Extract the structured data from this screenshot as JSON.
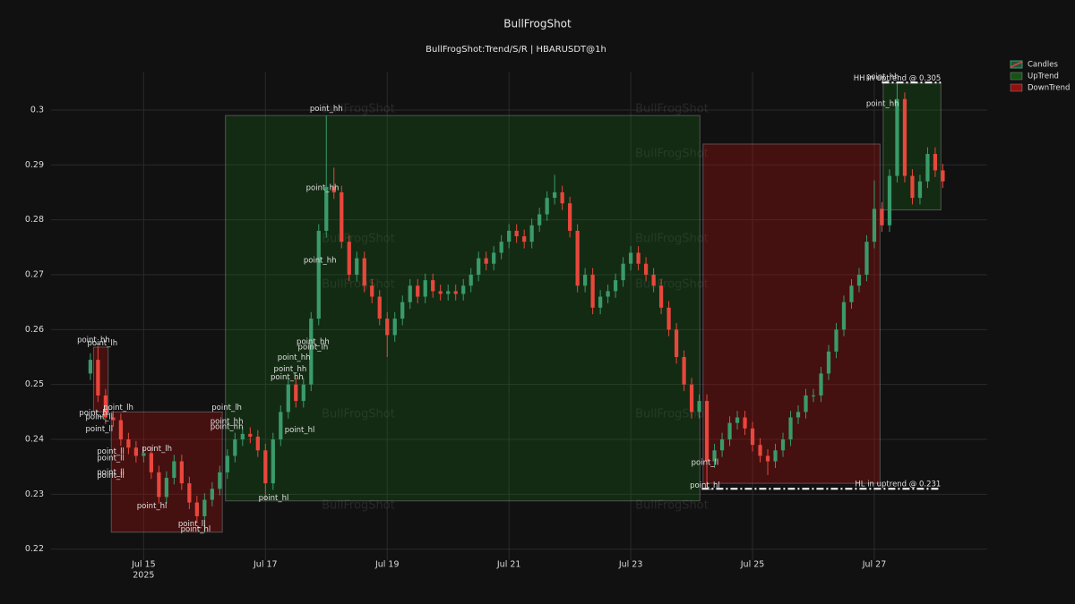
{
  "chart_data": {
    "type": "candlestick",
    "title": "BullFrogShot",
    "subtitle": "BullFrogShot:Trend/S/R | HBARUSDT@1h",
    "watermark": "BullFrogShot",
    "xlim": [
      "2025-07-13 11:30",
      "2025-07-28 20:30"
    ],
    "xticks": [
      {
        "value": "2025-07-15 00:00",
        "label": "Jul 15"
      },
      {
        "value": "2025-07-17 00:00",
        "label": "Jul 17"
      },
      {
        "value": "2025-07-19 00:00",
        "label": "Jul 19"
      },
      {
        "value": "2025-07-21 00:00",
        "label": "Jul 21"
      },
      {
        "value": "2025-07-23 00:00",
        "label": "Jul 23"
      },
      {
        "value": "2025-07-25 00:00",
        "label": "Jul 25"
      },
      {
        "value": "2025-07-27 00:00",
        "label": "Jul 27"
      }
    ],
    "x_year_label": "2025",
    "ylim": [
      0.218,
      0.307
    ],
    "yticks": [
      0.22,
      0.23,
      0.24,
      0.25,
      0.26,
      0.27,
      0.28,
      0.29,
      0.3
    ],
    "grid": true,
    "legend_position": "top-right",
    "series": [
      {
        "name": "Candles",
        "increasing_color": "#3a9a6a",
        "decreasing_color": "#e8473c"
      },
      {
        "name": "UpTrend",
        "color": "#1a8a1a",
        "opacity": 0.22
      },
      {
        "name": "DownTrend",
        "color": "#b31010",
        "opacity": 0.32
      }
    ],
    "x": [
      "2025-07-14 03:00",
      "2025-07-14 06:00",
      "2025-07-14 09:00",
      "2025-07-14 12:00",
      "2025-07-14 15:00",
      "2025-07-14 18:00",
      "2025-07-14 21:00",
      "2025-07-15 00:00",
      "2025-07-15 03:00",
      "2025-07-15 06:00",
      "2025-07-15 09:00",
      "2025-07-15 12:00",
      "2025-07-15 15:00",
      "2025-07-15 18:00",
      "2025-07-15 21:00",
      "2025-07-16 00:00",
      "2025-07-16 03:00",
      "2025-07-16 06:00",
      "2025-07-16 09:00",
      "2025-07-16 12:00",
      "2025-07-16 15:00",
      "2025-07-16 18:00",
      "2025-07-16 21:00",
      "2025-07-17 00:00",
      "2025-07-17 03:00",
      "2025-07-17 06:00",
      "2025-07-17 09:00",
      "2025-07-17 12:00",
      "2025-07-17 15:00",
      "2025-07-17 18:00",
      "2025-07-17 21:00",
      "2025-07-18 00:00",
      "2025-07-18 03:00",
      "2025-07-18 06:00",
      "2025-07-18 09:00",
      "2025-07-18 12:00",
      "2025-07-18 15:00",
      "2025-07-18 18:00",
      "2025-07-18 21:00",
      "2025-07-19 00:00",
      "2025-07-19 03:00",
      "2025-07-19 06:00",
      "2025-07-19 09:00",
      "2025-07-19 12:00",
      "2025-07-19 15:00",
      "2025-07-19 18:00",
      "2025-07-19 21:00",
      "2025-07-20 00:00",
      "2025-07-20 03:00",
      "2025-07-20 06:00",
      "2025-07-20 09:00",
      "2025-07-20 12:00",
      "2025-07-20 15:00",
      "2025-07-20 18:00",
      "2025-07-20 21:00",
      "2025-07-21 00:00",
      "2025-07-21 03:00",
      "2025-07-21 06:00",
      "2025-07-21 09:00",
      "2025-07-21 12:00",
      "2025-07-21 15:00",
      "2025-07-21 18:00",
      "2025-07-21 21:00",
      "2025-07-22 00:00",
      "2025-07-22 03:00",
      "2025-07-22 06:00",
      "2025-07-22 09:00",
      "2025-07-22 12:00",
      "2025-07-22 15:00",
      "2025-07-22 18:00",
      "2025-07-22 21:00",
      "2025-07-23 00:00",
      "2025-07-23 03:00",
      "2025-07-23 06:00",
      "2025-07-23 09:00",
      "2025-07-23 12:00",
      "2025-07-23 15:00",
      "2025-07-23 18:00",
      "2025-07-23 21:00",
      "2025-07-24 00:00",
      "2025-07-24 03:00",
      "2025-07-24 06:00",
      "2025-07-24 09:00",
      "2025-07-24 12:00",
      "2025-07-24 15:00",
      "2025-07-24 18:00",
      "2025-07-24 21:00",
      "2025-07-25 00:00",
      "2025-07-25 03:00",
      "2025-07-25 06:00",
      "2025-07-25 09:00",
      "2025-07-25 12:00",
      "2025-07-25 15:00",
      "2025-07-25 18:00",
      "2025-07-25 21:00",
      "2025-07-26 00:00",
      "2025-07-26 03:00",
      "2025-07-26 06:00",
      "2025-07-26 09:00",
      "2025-07-26 12:00",
      "2025-07-26 15:00",
      "2025-07-26 18:00",
      "2025-07-26 21:00",
      "2025-07-27 00:00",
      "2025-07-27 03:00",
      "2025-07-27 06:00",
      "2025-07-27 09:00",
      "2025-07-27 12:00",
      "2025-07-27 15:00",
      "2025-07-27 18:00",
      "2025-07-27 21:00",
      "2025-07-28 00:00",
      "2025-07-28 03:00"
    ],
    "open": [
      0.252,
      0.2545,
      0.248,
      0.244,
      0.2435,
      0.24,
      0.2385,
      0.237,
      0.2375,
      0.234,
      0.2295,
      0.233,
      0.236,
      0.232,
      0.2285,
      0.226,
      0.229,
      0.231,
      0.234,
      0.237,
      0.24,
      0.241,
      0.2405,
      0.238,
      0.232,
      0.24,
      0.245,
      0.25,
      0.247,
      0.25,
      0.262,
      0.278,
      0.286,
      0.285,
      0.276,
      0.27,
      0.273,
      0.268,
      0.266,
      0.262,
      0.259,
      0.262,
      0.265,
      0.268,
      0.266,
      0.269,
      0.267,
      0.2665,
      0.267,
      0.2665,
      0.268,
      0.27,
      0.273,
      0.272,
      0.274,
      0.276,
      0.278,
      0.277,
      0.276,
      0.279,
      0.281,
      0.284,
      0.285,
      0.283,
      0.278,
      0.268,
      0.27,
      0.264,
      0.266,
      0.267,
      0.269,
      0.272,
      0.274,
      0.272,
      0.27,
      0.268,
      0.264,
      0.26,
      0.255,
      0.25,
      0.245,
      0.247,
      0.236,
      0.238,
      0.24,
      0.243,
      0.244,
      0.242,
      0.239,
      0.237,
      0.236,
      0.238,
      0.24,
      0.244,
      0.245,
      0.248,
      0.248,
      0.252,
      0.256,
      0.26,
      0.265,
      0.268,
      0.27,
      0.276,
      0.282,
      0.279,
      0.288,
      0.302,
      0.288,
      0.284,
      0.287,
      0.292,
      0.289
    ],
    "high": [
      0.2557,
      0.257,
      0.2492,
      0.2452,
      0.2447,
      0.2412,
      0.2397,
      0.2387,
      0.2387,
      0.2352,
      0.2342,
      0.2372,
      0.2372,
      0.2332,
      0.2297,
      0.2302,
      0.2322,
      0.2352,
      0.2382,
      0.2412,
      0.2422,
      0.2422,
      0.2417,
      0.2392,
      0.2412,
      0.2462,
      0.2512,
      0.2512,
      0.2512,
      0.2632,
      0.2792,
      0.299,
      0.2895,
      0.2862,
      0.2772,
      0.2742,
      0.2742,
      0.2692,
      0.2672,
      0.2632,
      0.2632,
      0.2662,
      0.2692,
      0.2692,
      0.2702,
      0.2702,
      0.2682,
      0.2682,
      0.2682,
      0.2692,
      0.2712,
      0.2742,
      0.2742,
      0.2752,
      0.2772,
      0.2792,
      0.2792,
      0.2782,
      0.2802,
      0.2822,
      0.2852,
      0.2882,
      0.2862,
      0.2842,
      0.2792,
      0.2712,
      0.2712,
      0.2672,
      0.2682,
      0.2702,
      0.2732,
      0.2752,
      0.2752,
      0.2732,
      0.2712,
      0.2692,
      0.2652,
      0.2612,
      0.2562,
      0.2512,
      0.2482,
      0.2482,
      0.2392,
      0.2412,
      0.2442,
      0.2452,
      0.2452,
      0.2432,
      0.2402,
      0.2382,
      0.2392,
      0.2412,
      0.2452,
      0.2462,
      0.2492,
      0.2492,
      0.2532,
      0.2572,
      0.2612,
      0.2662,
      0.2692,
      0.2712,
      0.2772,
      0.2872,
      0.2832,
      0.2892,
      0.305,
      0.3032,
      0.2892,
      0.2882,
      0.2932,
      0.2932,
      0.2902
    ],
    "low": [
      0.2508,
      0.2468,
      0.2428,
      0.2423,
      0.2388,
      0.2373,
      0.2358,
      0.2358,
      0.2328,
      0.2283,
      0.2283,
      0.2318,
      0.2308,
      0.2273,
      0.2248,
      0.223,
      0.2278,
      0.2298,
      0.2328,
      0.2358,
      0.2388,
      0.2393,
      0.2368,
      0.229,
      0.2308,
      0.2388,
      0.2438,
      0.2458,
      0.2458,
      0.2488,
      0.2608,
      0.2768,
      0.2838,
      0.2748,
      0.2688,
      0.2688,
      0.2668,
      0.2648,
      0.2608,
      0.255,
      0.2578,
      0.2608,
      0.2638,
      0.2648,
      0.2648,
      0.2658,
      0.2653,
      0.2653,
      0.2653,
      0.2653,
      0.2668,
      0.2688,
      0.2708,
      0.2708,
      0.2728,
      0.2748,
      0.2758,
      0.2748,
      0.2748,
      0.2778,
      0.2798,
      0.2828,
      0.2818,
      0.2768,
      0.2668,
      0.2668,
      0.2628,
      0.2628,
      0.2648,
      0.2658,
      0.2678,
      0.2708,
      0.2708,
      0.2688,
      0.2668,
      0.2628,
      0.2588,
      0.2538,
      0.2488,
      0.2438,
      0.2438,
      0.231,
      0.2348,
      0.2368,
      0.2388,
      0.2418,
      0.2408,
      0.2378,
      0.2358,
      0.2335,
      0.2348,
      0.2368,
      0.2388,
      0.2428,
      0.2438,
      0.2468,
      0.2468,
      0.2508,
      0.2548,
      0.2588,
      0.2638,
      0.2668,
      0.2688,
      0.2748,
      0.2778,
      0.2778,
      0.2868,
      0.2868,
      0.2828,
      0.2828,
      0.2858,
      0.2878,
      0.2858
    ],
    "close": [
      0.2545,
      0.248,
      0.244,
      0.2435,
      0.24,
      0.2385,
      0.237,
      0.2375,
      0.234,
      0.2295,
      0.233,
      0.236,
      0.232,
      0.2285,
      0.226,
      0.229,
      0.231,
      0.234,
      0.237,
      0.24,
      0.241,
      0.2405,
      0.238,
      0.232,
      0.24,
      0.245,
      0.25,
      0.247,
      0.25,
      0.262,
      0.278,
      0.286,
      0.285,
      0.276,
      0.27,
      0.273,
      0.268,
      0.266,
      0.262,
      0.259,
      0.262,
      0.265,
      0.268,
      0.266,
      0.269,
      0.267,
      0.2665,
      0.267,
      0.2665,
      0.268,
      0.27,
      0.273,
      0.272,
      0.274,
      0.276,
      0.278,
      0.277,
      0.276,
      0.279,
      0.281,
      0.284,
      0.285,
      0.283,
      0.278,
      0.268,
      0.27,
      0.264,
      0.266,
      0.267,
      0.269,
      0.272,
      0.274,
      0.272,
      0.27,
      0.268,
      0.264,
      0.26,
      0.255,
      0.25,
      0.245,
      0.247,
      0.236,
      0.238,
      0.24,
      0.243,
      0.244,
      0.242,
      0.239,
      0.237,
      0.236,
      0.238,
      0.24,
      0.244,
      0.245,
      0.248,
      0.248,
      0.252,
      0.256,
      0.26,
      0.265,
      0.268,
      0.27,
      0.276,
      0.282,
      0.279,
      0.288,
      0.302,
      0.288,
      0.284,
      0.287,
      0.292,
      0.289,
      0.287
    ],
    "trend_boxes": [
      {
        "series": 2,
        "x0": "2025-07-14 04:15",
        "x1": "2025-07-14 10:00",
        "y0": 0.245,
        "y1": 0.2568
      },
      {
        "series": 2,
        "x0": "2025-07-14 11:15",
        "x1": "2025-07-16 07:00",
        "y0": 0.2231,
        "y1": 0.245
      },
      {
        "series": 1,
        "x0": "2025-07-16 08:15",
        "x1": "2025-07-24 03:15",
        "y0": 0.2288,
        "y1": 0.299
      },
      {
        "series": 2,
        "x0": "2025-07-24 04:30",
        "x1": "2025-07-27 02:15",
        "y0": 0.232,
        "y1": 0.2938
      },
      {
        "series": 1,
        "x0": "2025-07-27 03:30",
        "x1": "2025-07-28 02:15",
        "y0": 0.2818,
        "y1": 0.3049
      }
    ],
    "levels": [
      {
        "label": "HH in uptrend @ 0.305",
        "y": 0.305,
        "x0": "2025-07-27 03:00",
        "x1": "2025-07-28 02:15"
      },
      {
        "label": "HL in uptrend @ 0.231",
        "y": 0.231,
        "x0": "2025-07-24 04:00",
        "x1": "2025-07-28 02:15"
      }
    ],
    "annotations": [
      {
        "text": "point_hh",
        "x": "2025-07-14 04:15",
        "y": 0.2581
      },
      {
        "text": "point_lh",
        "x": "2025-07-14 07:45",
        "y": 0.2575
      },
      {
        "text": "point_lh",
        "x": "2025-07-14 14:00",
        "y": 0.2458
      },
      {
        "text": "point_hl",
        "x": "2025-07-14 04:30",
        "y": 0.2448
      },
      {
        "text": "point_ll",
        "x": "2025-07-14 06:30",
        "y": 0.2441
      },
      {
        "text": "point_ll",
        "x": "2025-07-14 06:30",
        "y": 0.2419
      },
      {
        "text": "point_ll",
        "x": "2025-07-14 11:00",
        "y": 0.2378
      },
      {
        "text": "point_ll",
        "x": "2025-07-14 11:00",
        "y": 0.2366
      },
      {
        "text": "point_ll",
        "x": "2025-07-14 11:00",
        "y": 0.234
      },
      {
        "text": "point_ll",
        "x": "2025-07-14 11:00",
        "y": 0.2334
      },
      {
        "text": "point_lh",
        "x": "2025-07-15 05:15",
        "y": 0.2383
      },
      {
        "text": "point_hl",
        "x": "2025-07-15 03:15",
        "y": 0.2279
      },
      {
        "text": "point_ll",
        "x": "2025-07-15 19:00",
        "y": 0.2246
      },
      {
        "text": "point_hl",
        "x": "2025-07-15 20:30",
        "y": 0.2236
      },
      {
        "text": "point_lh",
        "x": "2025-07-16 08:45",
        "y": 0.2458
      },
      {
        "text": "point_hh",
        "x": "2025-07-16 08:45",
        "y": 0.2433
      },
      {
        "text": "point_hh",
        "x": "2025-07-16 08:45",
        "y": 0.2423
      },
      {
        "text": "point_hl",
        "x": "2025-07-17 03:15",
        "y": 0.2293
      },
      {
        "text": "point_hl",
        "x": "2025-07-17 13:30",
        "y": 0.2417
      },
      {
        "text": "point_hh",
        "x": "2025-07-17 11:15",
        "y": 0.2549
      },
      {
        "text": "point_hh",
        "x": "2025-07-17 09:45",
        "y": 0.2528
      },
      {
        "text": "point_hh",
        "x": "2025-07-17 08:30",
        "y": 0.2513
      },
      {
        "text": "point_hh",
        "x": "2025-07-17 18:45",
        "y": 0.2578
      },
      {
        "text": "point_lh",
        "x": "2025-07-17 18:45",
        "y": 0.2568
      },
      {
        "text": "point_hh",
        "x": "2025-07-18 00:00",
        "y": 0.3002
      },
      {
        "text": "point_hh",
        "x": "2025-07-17 22:30",
        "y": 0.2858
      },
      {
        "text": "point_hh",
        "x": "2025-07-17 21:30",
        "y": 0.2726
      },
      {
        "text": "point_ll",
        "x": "2025-07-24 05:15",
        "y": 0.2358
      },
      {
        "text": "point_hl",
        "x": "2025-07-24 05:15",
        "y": 0.2316
      },
      {
        "text": "point_hh",
        "x": "2025-07-27 03:15",
        "y": 0.3011
      },
      {
        "text": "point_hh",
        "x": "2025-07-27 03:15",
        "y": 0.306
      }
    ]
  }
}
